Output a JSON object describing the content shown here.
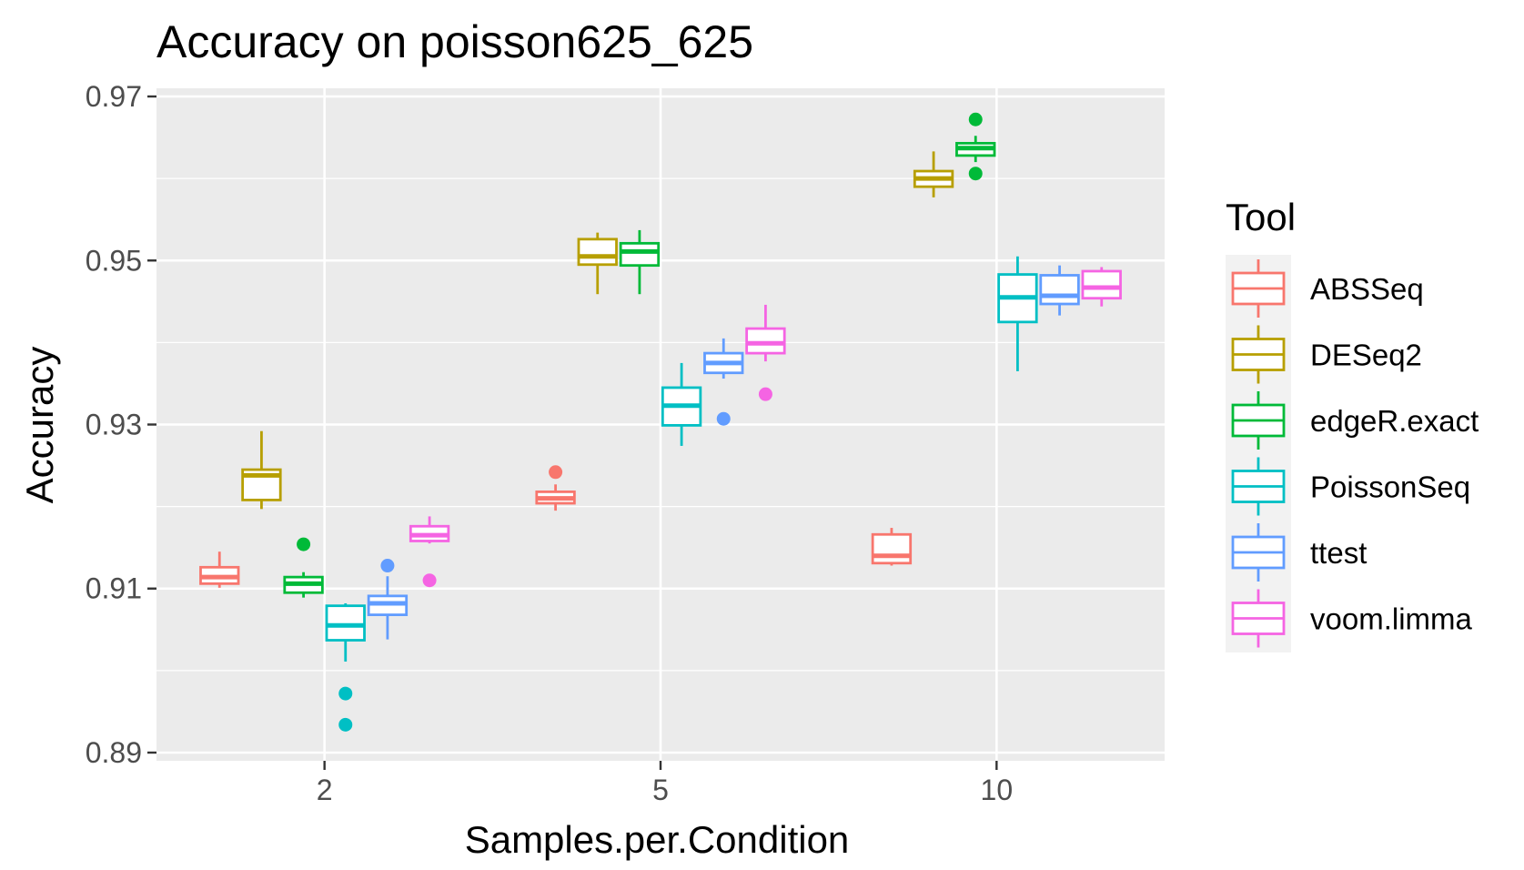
{
  "chart_data": {
    "type": "boxplot",
    "title": "Accuracy on poisson625_625",
    "xlabel": "Samples.per.Condition",
    "ylabel": "Accuracy",
    "categories": [
      "2",
      "5",
      "10"
    ],
    "ylim": [
      0.889,
      0.971
    ],
    "yticks": [
      0.89,
      0.91,
      0.93,
      0.95,
      0.97
    ],
    "ytick_labels": [
      "0.89",
      "0.91",
      "0.93",
      "0.95",
      "0.97"
    ],
    "grid": true,
    "legend": {
      "title": "Tool",
      "position": "right"
    },
    "series": [
      {
        "name": "ABSSeq",
        "color": "#F8766D",
        "boxes": [
          {
            "category": "2",
            "min": 0.9101,
            "q1": 0.9106,
            "median": 0.9114,
            "q3": 0.9126,
            "max": 0.9145,
            "outliers": []
          },
          {
            "category": "5",
            "min": 0.9195,
            "q1": 0.9204,
            "median": 0.921,
            "q3": 0.9218,
            "max": 0.9227,
            "outliers": [
              0.9242
            ]
          },
          {
            "category": "10",
            "min": 0.9128,
            "q1": 0.9131,
            "median": 0.914,
            "q3": 0.9166,
            "max": 0.9174,
            "outliers": []
          }
        ]
      },
      {
        "name": "DESeq2",
        "color": "#B79F00",
        "boxes": [
          {
            "category": "2",
            "min": 0.9197,
            "q1": 0.9208,
            "median": 0.9238,
            "q3": 0.9245,
            "max": 0.9292,
            "outliers": []
          },
          {
            "category": "5",
            "min": 0.9459,
            "q1": 0.9495,
            "median": 0.9505,
            "q3": 0.9526,
            "max": 0.9534,
            "outliers": []
          },
          {
            "category": "10",
            "min": 0.9577,
            "q1": 0.959,
            "median": 0.96,
            "q3": 0.9609,
            "max": 0.9633,
            "outliers": []
          }
        ]
      },
      {
        "name": "edgeR.exact",
        "color": "#00BA38",
        "boxes": [
          {
            "category": "2",
            "min": 0.9089,
            "q1": 0.9095,
            "median": 0.9106,
            "q3": 0.9114,
            "max": 0.912,
            "outliers": [
              0.9154
            ]
          },
          {
            "category": "5",
            "min": 0.9459,
            "q1": 0.9494,
            "median": 0.9511,
            "q3": 0.9521,
            "max": 0.9537,
            "outliers": []
          },
          {
            "category": "10",
            "min": 0.962,
            "q1": 0.9628,
            "median": 0.9637,
            "q3": 0.9643,
            "max": 0.9652,
            "outliers": [
              0.9672,
              0.9606
            ]
          }
        ]
      },
      {
        "name": "PoissonSeq",
        "color": "#00BFC4",
        "boxes": [
          {
            "category": "2",
            "min": 0.9011,
            "q1": 0.9037,
            "median": 0.9055,
            "q3": 0.9079,
            "max": 0.9082,
            "outliers": [
              0.8972,
              0.8934
            ]
          },
          {
            "category": "5",
            "min": 0.9274,
            "q1": 0.9299,
            "median": 0.9323,
            "q3": 0.9345,
            "max": 0.9375,
            "outliers": []
          },
          {
            "category": "10",
            "min": 0.9365,
            "q1": 0.9425,
            "median": 0.9455,
            "q3": 0.9483,
            "max": 0.9505,
            "outliers": []
          }
        ]
      },
      {
        "name": "ttest",
        "color": "#619CFF",
        "boxes": [
          {
            "category": "2",
            "min": 0.9038,
            "q1": 0.9068,
            "median": 0.9082,
            "q3": 0.9091,
            "max": 0.9115,
            "outliers": [
              0.9128
            ]
          },
          {
            "category": "5",
            "min": 0.9356,
            "q1": 0.9363,
            "median": 0.9375,
            "q3": 0.9387,
            "max": 0.9405,
            "outliers": [
              0.9307
            ]
          },
          {
            "category": "10",
            "min": 0.9433,
            "q1": 0.9447,
            "median": 0.9457,
            "q3": 0.9482,
            "max": 0.9494,
            "outliers": []
          }
        ]
      },
      {
        "name": "voom.limma",
        "color": "#F564E3",
        "boxes": [
          {
            "category": "2",
            "min": 0.9155,
            "q1": 0.9158,
            "median": 0.9165,
            "q3": 0.9176,
            "max": 0.9188,
            "outliers": [
              0.911
            ]
          },
          {
            "category": "5",
            "min": 0.9377,
            "q1": 0.9387,
            "median": 0.9399,
            "q3": 0.9417,
            "max": 0.9446,
            "outliers": [
              0.9337
            ]
          },
          {
            "category": "10",
            "min": 0.9444,
            "q1": 0.9454,
            "median": 0.9467,
            "q3": 0.9487,
            "max": 0.9492,
            "outliers": []
          }
        ]
      }
    ]
  }
}
